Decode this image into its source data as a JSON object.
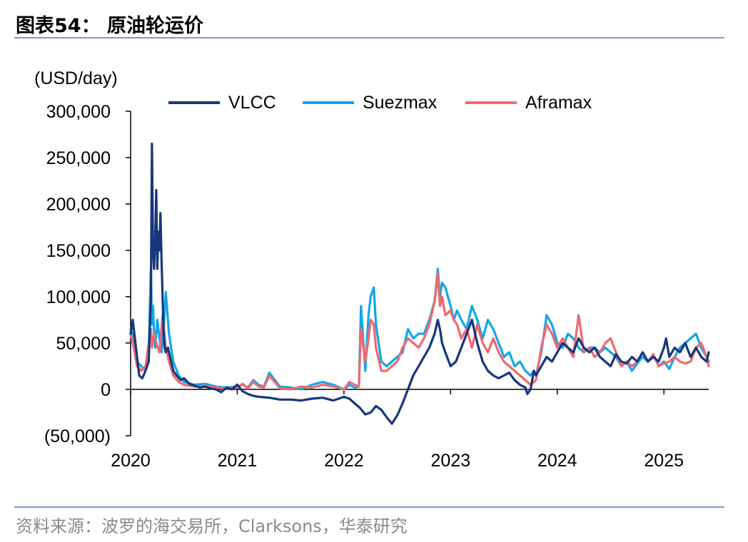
{
  "title": "图表54： 原油轮运价",
  "source": "资料来源：波罗的海交易所，Clarksons，华泰研究",
  "chart_data": {
    "type": "line",
    "unit_label": "(USD/day)",
    "ylim": [
      -50000,
      300000
    ],
    "yticks": [
      -50000,
      0,
      50000,
      100000,
      150000,
      200000,
      250000,
      300000
    ],
    "ytick_labels": [
      "(50,000)",
      "0",
      "50,000",
      "100,000",
      "150,000",
      "200,000",
      "250,000",
      "300,000"
    ],
    "xlim": [
      2020.0,
      2025.42
    ],
    "xticks": [
      2020,
      2021,
      2022,
      2023,
      2024,
      2025
    ],
    "xtick_labels": [
      "2020",
      "2021",
      "2022",
      "2023",
      "2024",
      "2025"
    ],
    "legend_position": "top",
    "series": [
      {
        "name": "VLCC",
        "color": "#17367c",
        "x": [
          2020.0,
          2020.02,
          2020.05,
          2020.08,
          2020.11,
          2020.14,
          2020.17,
          2020.19,
          2020.2,
          2020.21,
          2020.22,
          2020.23,
          2020.24,
          2020.25,
          2020.26,
          2020.27,
          2020.28,
          2020.29,
          2020.3,
          2020.31,
          2020.32,
          2020.33,
          2020.35,
          2020.37,
          2020.4,
          2020.43,
          2020.47,
          2020.5,
          2020.55,
          2020.6,
          2020.65,
          2020.7,
          2020.75,
          2020.8,
          2020.85,
          2020.9,
          2020.95,
          2021.0,
          2021.05,
          2021.1,
          2021.15,
          2021.2,
          2021.3,
          2021.4,
          2021.5,
          2021.6,
          2021.7,
          2021.8,
          2021.9,
          2022.0,
          2022.05,
          2022.1,
          2022.15,
          2022.2,
          2022.25,
          2022.3,
          2022.35,
          2022.4,
          2022.45,
          2022.5,
          2022.55,
          2022.6,
          2022.65,
          2022.7,
          2022.75,
          2022.8,
          2022.85,
          2022.88,
          2022.9,
          2022.92,
          2022.95,
          2023.0,
          2023.05,
          2023.1,
          2023.15,
          2023.2,
          2023.25,
          2023.3,
          2023.35,
          2023.4,
          2023.45,
          2023.5,
          2023.55,
          2023.6,
          2023.65,
          2023.7,
          2023.72,
          2023.75,
          2023.78,
          2023.8,
          2023.85,
          2023.9,
          2023.95,
          2024.0,
          2024.05,
          2024.1,
          2024.15,
          2024.2,
          2024.25,
          2024.3,
          2024.35,
          2024.4,
          2024.45,
          2024.5,
          2024.55,
          2024.6,
          2024.65,
          2024.7,
          2024.75,
          2024.8,
          2024.85,
          2024.9,
          2024.95,
          2025.0,
          2025.02,
          2025.05,
          2025.1,
          2025.15,
          2025.2,
          2025.25,
          2025.3,
          2025.35,
          2025.4,
          2025.42
        ],
        "y": [
          60000,
          75000,
          45000,
          15000,
          12000,
          20000,
          30000,
          100000,
          265000,
          150000,
          130000,
          160000,
          215000,
          130000,
          170000,
          150000,
          190000,
          140000,
          100000,
          60000,
          45000,
          40000,
          45000,
          35000,
          20000,
          15000,
          10000,
          12000,
          6000,
          4000,
          2000,
          3000,
          1000,
          0,
          -3000,
          2000,
          0,
          5000,
          -2000,
          -5000,
          -7000,
          -8000,
          -9000,
          -11000,
          -11000,
          -12000,
          -10000,
          -9000,
          -12000,
          -8000,
          -10000,
          -15000,
          -20000,
          -27000,
          -25000,
          -18000,
          -22000,
          -30000,
          -37000,
          -28000,
          -15000,
          0,
          15000,
          25000,
          35000,
          45000,
          60000,
          75000,
          65000,
          50000,
          40000,
          25000,
          30000,
          45000,
          60000,
          75000,
          50000,
          30000,
          20000,
          15000,
          12000,
          15000,
          18000,
          10000,
          5000,
          2000,
          -5000,
          0,
          20000,
          15000,
          25000,
          35000,
          30000,
          40000,
          50000,
          45000,
          40000,
          55000,
          45000,
          40000,
          45000,
          35000,
          30000,
          25000,
          38000,
          30000,
          28000,
          35000,
          30000,
          40000,
          30000,
          35000,
          30000,
          45000,
          55000,
          35000,
          45000,
          40000,
          50000,
          35000,
          45000,
          35000,
          30000,
          40000
        ],
        "z": 3
      },
      {
        "name": "Suezmax",
        "color": "#11a7e8",
        "x": [
          2020.0,
          2020.03,
          2020.06,
          2020.1,
          2020.14,
          2020.17,
          2020.19,
          2020.2,
          2020.21,
          2020.22,
          2020.23,
          2020.25,
          2020.27,
          2020.29,
          2020.31,
          2020.33,
          2020.36,
          2020.4,
          2020.45,
          2020.5,
          2020.6,
          2020.7,
          2020.8,
          2020.9,
          2021.0,
          2021.05,
          2021.1,
          2021.15,
          2021.2,
          2021.25,
          2021.3,
          2021.4,
          2021.5,
          2021.6,
          2021.7,
          2021.8,
          2021.9,
          2022.0,
          2022.05,
          2022.1,
          2022.14,
          2022.16,
          2022.2,
          2022.23,
          2022.25,
          2022.28,
          2022.3,
          2022.35,
          2022.4,
          2022.45,
          2022.5,
          2022.55,
          2022.6,
          2022.65,
          2022.7,
          2022.75,
          2022.8,
          2022.85,
          2022.88,
          2022.9,
          2022.92,
          2022.95,
          2023.0,
          2023.03,
          2023.06,
          2023.1,
          2023.15,
          2023.2,
          2023.25,
          2023.3,
          2023.35,
          2023.4,
          2023.45,
          2023.5,
          2023.55,
          2023.6,
          2023.65,
          2023.7,
          2023.75,
          2023.78,
          2023.8,
          2023.85,
          2023.9,
          2023.95,
          2024.0,
          2024.05,
          2024.1,
          2024.15,
          2024.2,
          2024.25,
          2024.3,
          2024.35,
          2024.4,
          2024.45,
          2024.5,
          2024.55,
          2024.6,
          2024.65,
          2024.7,
          2024.75,
          2024.8,
          2024.85,
          2024.9,
          2024.95,
          2025.0,
          2025.05,
          2025.1,
          2025.15,
          2025.2,
          2025.25,
          2025.3,
          2025.35,
          2025.4,
          2025.42
        ],
        "y": [
          65000,
          55000,
          30000,
          25000,
          20000,
          40000,
          130000,
          70000,
          90000,
          60000,
          45000,
          75000,
          55000,
          40000,
          65000,
          105000,
          60000,
          30000,
          15000,
          8000,
          5000,
          6000,
          3000,
          2000,
          3000,
          5000,
          2000,
          10000,
          5000,
          3000,
          18000,
          3000,
          2000,
          0,
          5000,
          8000,
          5000,
          0,
          5000,
          2000,
          3000,
          90000,
          20000,
          80000,
          100000,
          110000,
          70000,
          30000,
          25000,
          30000,
          35000,
          40000,
          65000,
          55000,
          60000,
          60000,
          75000,
          95000,
          130000,
          100000,
          115000,
          110000,
          90000,
          75000,
          85000,
          75000,
          65000,
          90000,
          75000,
          55000,
          75000,
          65000,
          50000,
          35000,
          40000,
          25000,
          30000,
          20000,
          15000,
          20000,
          15000,
          40000,
          80000,
          70000,
          50000,
          45000,
          60000,
          55000,
          45000,
          40000,
          45000,
          45000,
          40000,
          45000,
          40000,
          35000,
          25000,
          30000,
          20000,
          28000,
          35000,
          30000,
          38000,
          25000,
          30000,
          22000,
          35000,
          45000,
          50000,
          55000,
          60000,
          45000,
          35000,
          30000
        ],
        "z": 1
      },
      {
        "name": "Aframax",
        "color": "#f0686e",
        "x": [
          2020.0,
          2020.03,
          2020.06,
          2020.1,
          2020.14,
          2020.17,
          2020.19,
          2020.2,
          2020.22,
          2020.24,
          2020.27,
          2020.3,
          2020.33,
          2020.36,
          2020.4,
          2020.45,
          2020.5,
          2020.6,
          2020.7,
          2020.8,
          2020.9,
          2021.0,
          2021.05,
          2021.1,
          2021.15,
          2021.2,
          2021.25,
          2021.3,
          2021.4,
          2021.5,
          2021.6,
          2021.7,
          2021.8,
          2021.9,
          2022.0,
          2022.05,
          2022.1,
          2022.14,
          2022.16,
          2022.2,
          2022.23,
          2022.25,
          2022.28,
          2022.3,
          2022.35,
          2022.4,
          2022.45,
          2022.5,
          2022.55,
          2022.6,
          2022.65,
          2022.7,
          2022.75,
          2022.8,
          2022.85,
          2022.88,
          2022.9,
          2022.92,
          2022.95,
          2023.0,
          2023.03,
          2023.06,
          2023.1,
          2023.15,
          2023.2,
          2023.25,
          2023.3,
          2023.35,
          2023.4,
          2023.45,
          2023.5,
          2023.55,
          2023.6,
          2023.65,
          2023.7,
          2023.75,
          2023.8,
          2023.85,
          2023.9,
          2023.95,
          2024.0,
          2024.05,
          2024.1,
          2024.15,
          2024.2,
          2024.25,
          2024.3,
          2024.35,
          2024.4,
          2024.45,
          2024.5,
          2024.55,
          2024.6,
          2024.65,
          2024.7,
          2024.75,
          2024.8,
          2024.85,
          2024.9,
          2024.95,
          2025.0,
          2025.05,
          2025.1,
          2025.15,
          2025.2,
          2025.25,
          2025.3,
          2025.35,
          2025.4,
          2025.42
        ],
        "y": [
          60000,
          45000,
          25000,
          20000,
          25000,
          50000,
          65000,
          45000,
          60000,
          50000,
          40000,
          80000,
          45000,
          30000,
          15000,
          8000,
          5000,
          3000,
          4000,
          2000,
          1000,
          2000,
          6000,
          1000,
          8000,
          3000,
          2000,
          15000,
          1000,
          0,
          3000,
          2000,
          5000,
          3000,
          0,
          8000,
          5000,
          3000,
          65000,
          30000,
          55000,
          75000,
          70000,
          45000,
          20000,
          20000,
          25000,
          30000,
          45000,
          55000,
          50000,
          45000,
          55000,
          70000,
          95000,
          125000,
          90000,
          100000,
          80000,
          85000,
          75000,
          70000,
          55000,
          65000,
          45000,
          70000,
          50000,
          40000,
          55000,
          40000,
          30000,
          25000,
          20000,
          15000,
          10000,
          5000,
          10000,
          45000,
          70000,
          60000,
          45000,
          55000,
          45000,
          35000,
          80000,
          40000,
          45000,
          35000,
          40000,
          50000,
          55000,
          40000,
          25000,
          30000,
          25000,
          30000,
          40000,
          30000,
          38000,
          25000,
          28000,
          30000,
          35000,
          30000,
          28000,
          30000,
          45000,
          50000,
          35000,
          25000
        ],
        "z": 2
      }
    ]
  }
}
